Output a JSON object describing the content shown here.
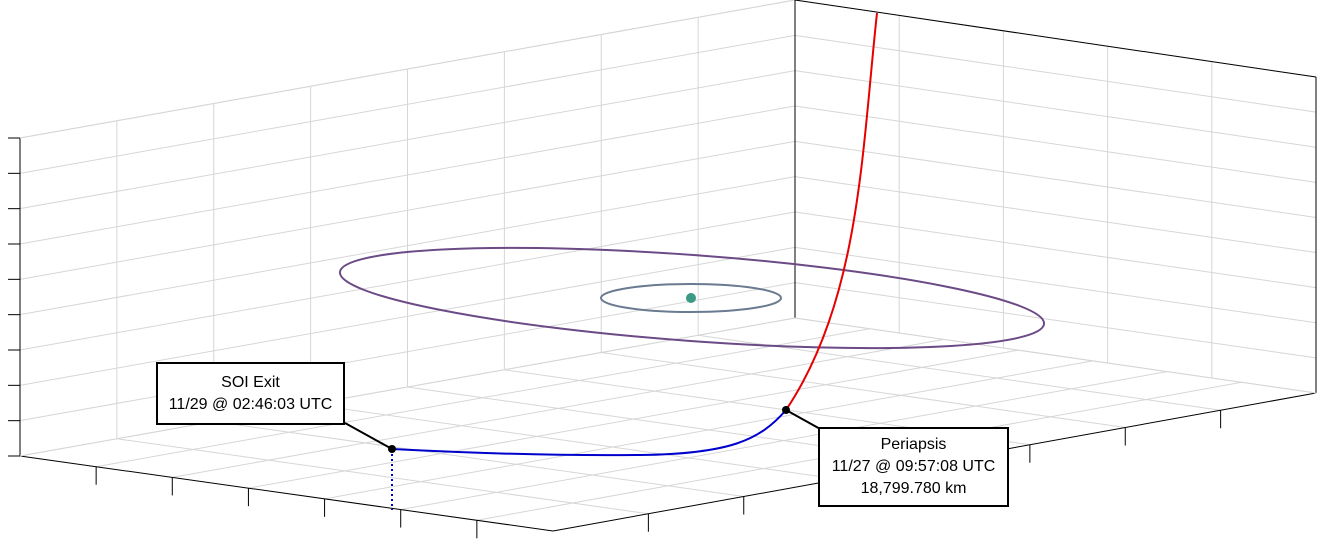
{
  "colors": {
    "background": "#ffffff",
    "grid": "#d6d6d6",
    "axis": "#000000",
    "incoming_trajectory": "#e60000",
    "outgoing_trajectory": "#0000cc",
    "outer_orbit": "#6b4a86",
    "inner_orbit": "#6a7a90",
    "central_body": "#3a9a85",
    "marker": "#000000"
  },
  "annotations": {
    "soi_exit": {
      "title": "SOI Exit",
      "time": "11/29 @ 02:46:03 UTC"
    },
    "periapsis": {
      "title": "Periapsis",
      "time": "11/27 @ 09:57:08 UTC",
      "altitude": "18,799.780 km"
    }
  },
  "legend": []
}
